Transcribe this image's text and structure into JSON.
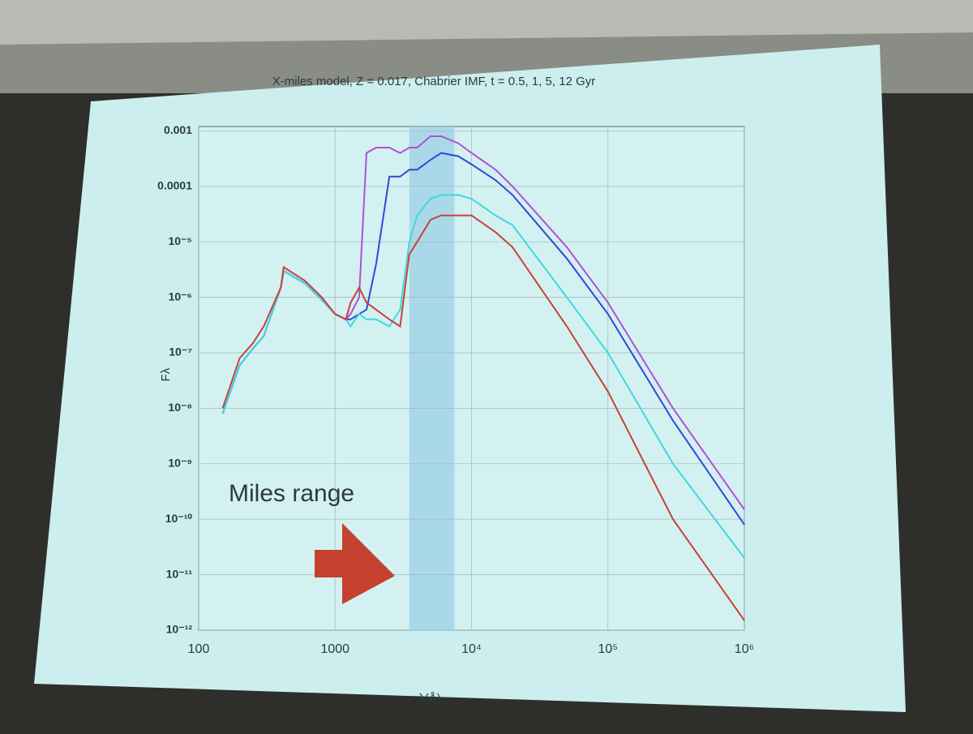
{
  "chart_data": {
    "type": "line",
    "title": "X-miles model, Z = 0.017, Chabrier IMF, t = 0.5, 1, 5, 12 Gyr",
    "x_label": "λ(Å)",
    "y_label": "Fλ",
    "annotation": "Miles range",
    "shaded_range": [
      3500,
      7500
    ],
    "shaded_color": "#9fd3e6",
    "xscale": "log",
    "yscale": "log",
    "grid": true,
    "xlim": [
      100,
      1000000
    ],
    "ylim": [
      1e-12,
      0.0012
    ],
    "xticks": [
      100,
      1000,
      {
        "value": 10000,
        "label": "10⁴"
      },
      {
        "value": 100000,
        "label": "10⁵"
      },
      {
        "value": 1000000,
        "label": "10⁶"
      }
    ],
    "yticks": [
      0.001,
      0.0001,
      {
        "value": 1e-05,
        "label": "10⁻⁵"
      },
      {
        "value": 1e-06,
        "label": "10⁻⁶"
      },
      {
        "value": 1e-07,
        "label": "10⁻⁷"
      },
      {
        "value": 1e-08,
        "label": "10⁻⁸"
      },
      {
        "value": 1e-09,
        "label": "10⁻⁹"
      },
      {
        "value": 1e-10,
        "label": "10⁻¹⁰"
      },
      {
        "value": 1e-11,
        "label": "10⁻¹¹"
      },
      {
        "value": 1e-12,
        "label": "10⁻¹²"
      }
    ],
    "x": [
      150,
      200,
      250,
      300,
      400,
      420,
      600,
      800,
      1000,
      1200,
      1300,
      1500,
      1700,
      2000,
      2500,
      3000,
      3500,
      4000,
      5000,
      6000,
      8000,
      10000,
      15000,
      20000,
      50000,
      100000,
      300000,
      1000000
    ],
    "series": [
      {
        "color": "#b24fd6",
        "values": [
          8e-09,
          6e-08,
          1.2e-07,
          2e-07,
          1.5e-06,
          3e-06,
          1.8e-06,
          9e-07,
          5e-07,
          4e-07,
          5e-07,
          1e-06,
          0.0004,
          0.0005,
          0.0005,
          0.0004,
          0.0005,
          0.0005,
          0.0008,
          0.0008,
          0.0006,
          0.0004,
          0.0002,
          0.0001,
          8e-06,
          8e-07,
          1e-08,
          1.5e-10
        ]
      },
      {
        "color": "#3447d8",
        "values": [
          8e-09,
          6e-08,
          1.2e-07,
          2e-07,
          1.5e-06,
          3e-06,
          1.8e-06,
          9e-07,
          5e-07,
          4e-07,
          4e-07,
          5e-07,
          6e-07,
          4e-06,
          0.00015,
          0.00015,
          0.0002,
          0.0002,
          0.0003,
          0.0004,
          0.00035,
          0.00025,
          0.00013,
          7e-05,
          5e-06,
          5e-07,
          6e-09,
          8e-11
        ]
      },
      {
        "color": "#3fd8e0",
        "values": [
          8e-09,
          6e-08,
          1.2e-07,
          2e-07,
          1.5e-06,
          3e-06,
          1.8e-06,
          9e-07,
          5e-07,
          4e-07,
          3e-07,
          5e-07,
          4e-07,
          4e-07,
          3e-07,
          6e-07,
          1e-05,
          3e-05,
          6e-05,
          7e-05,
          7e-05,
          6e-05,
          3e-05,
          2e-05,
          1e-06,
          1e-07,
          1e-09,
          2e-11
        ]
      },
      {
        "color": "#c8413a",
        "values": [
          1e-08,
          8e-08,
          1.5e-07,
          3e-07,
          1.5e-06,
          3.5e-06,
          2e-06,
          1e-06,
          5e-07,
          4e-07,
          8e-07,
          1.5e-06,
          8e-07,
          6e-07,
          4e-07,
          3e-07,
          6e-06,
          1e-05,
          2.5e-05,
          3e-05,
          3e-05,
          3e-05,
          1.5e-05,
          8e-06,
          3e-07,
          2e-08,
          1e-10,
          1.5e-12
        ]
      }
    ]
  }
}
